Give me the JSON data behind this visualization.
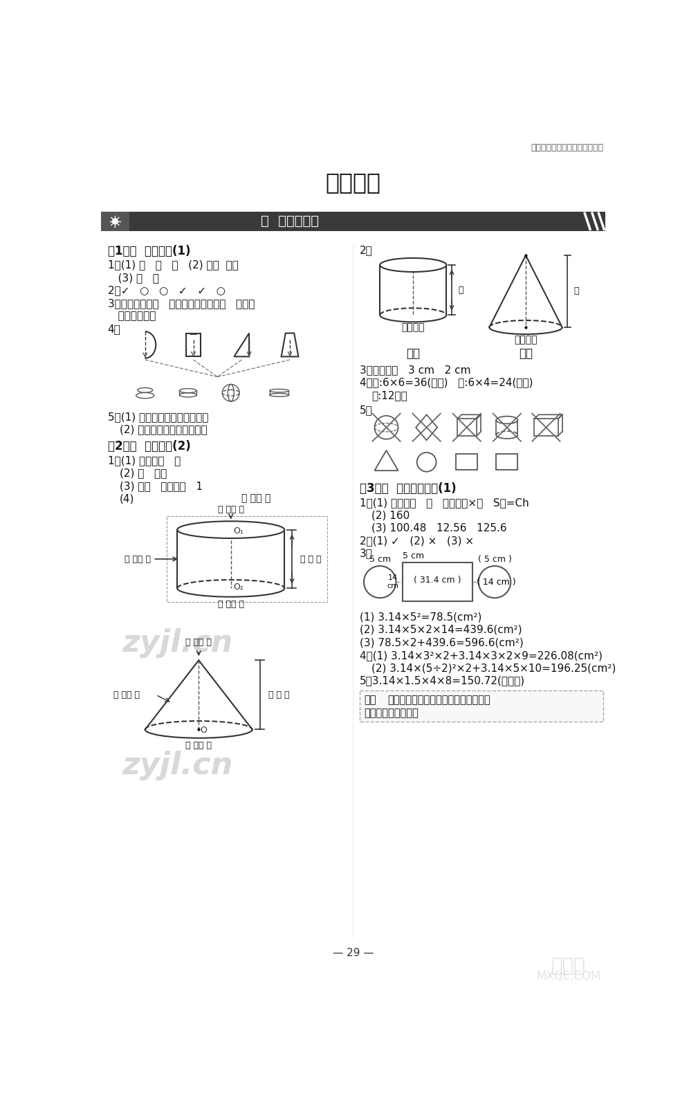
{
  "page_bg": "#ffffff",
  "top_right_text": "小学数学丨北师大版丨六年级下",
  "main_title": "标准答案",
  "section_banner": "一  圆柱与圆锥",
  "page_number": "— 29 —"
}
